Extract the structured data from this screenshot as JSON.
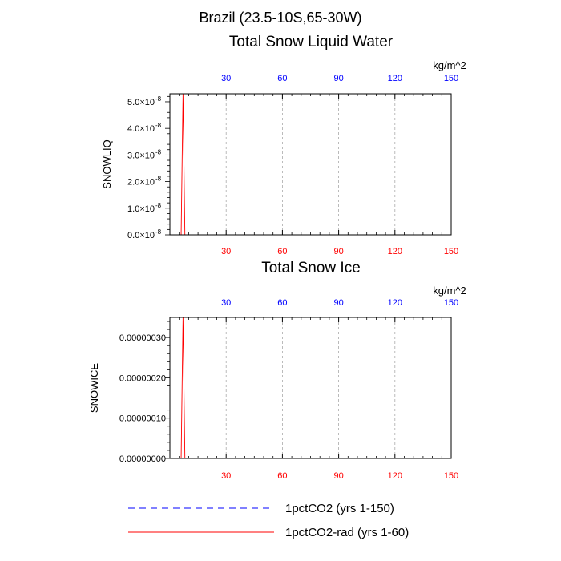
{
  "title": "Brazil (23.5-10S,65-30W)",
  "colors": {
    "top_tick_labels": "#0000ff",
    "bottom_tick_labels": "#ff0000",
    "grid": "#aaaaaa",
    "series_1pctCO2": "#0000ff",
    "series_1pctCO2_rad": "#ff0000"
  },
  "legend": {
    "placement": "bottom",
    "entries": [
      {
        "label": "1pctCO2 (yrs 1-150)",
        "style": "dashed",
        "color": "#0000ff"
      },
      {
        "label": "1pctCO2-rad (yrs 1-60)",
        "style": "solid",
        "color": "#ff0000"
      }
    ]
  },
  "chart_data": [
    {
      "type": "line",
      "title": "Total Snow Liquid Water",
      "units_label": "kg/m^2",
      "ylabel": "SNOWLIQ",
      "xlim": [
        0,
        150
      ],
      "x_ticks": [
        30,
        60,
        90,
        120,
        150
      ],
      "x_tick_labels": [
        "30",
        "60",
        "90",
        "120",
        "150"
      ],
      "ylim": [
        0,
        5.3e-08
      ],
      "y_ticks": [
        0,
        1e-08,
        2e-08,
        3e-08,
        4e-08,
        5e-08
      ],
      "y_tick_labels": [
        {
          "mantissa": "0.0×10",
          "exp": "-8"
        },
        {
          "mantissa": "1.0×10",
          "exp": "-8"
        },
        {
          "mantissa": "2.0×10",
          "exp": "-8"
        },
        {
          "mantissa": "3.0×10",
          "exp": "-8"
        },
        {
          "mantissa": "4.0×10",
          "exp": "-8"
        },
        {
          "mantissa": "5.0×10",
          "exp": "-8"
        }
      ],
      "grid": "x-dashed",
      "series": [
        {
          "name": "1pctCO2 (yrs 1-150)",
          "x": [
            1,
            150
          ],
          "y": [
            0,
            0
          ]
        },
        {
          "name": "1pctCO2-rad (yrs 1-60)",
          "x": [
            6,
            7,
            8,
            60
          ],
          "y": [
            0,
            5.3e-08,
            0,
            0
          ]
        }
      ]
    },
    {
      "type": "line",
      "title": "Total Snow Ice",
      "units_label": "kg/m^2",
      "ylabel": "SNOWICE",
      "xlim": [
        0,
        150
      ],
      "x_ticks": [
        30,
        60,
        90,
        120,
        150
      ],
      "x_tick_labels": [
        "30",
        "60",
        "90",
        "120",
        "150"
      ],
      "ylim": [
        0,
        3.5e-07
      ],
      "y_ticks": [
        0,
        1e-07,
        2e-07,
        3e-07
      ],
      "y_tick_labels": [
        {
          "mantissa": "0.00000000",
          "exp": ""
        },
        {
          "mantissa": "0.00000010",
          "exp": ""
        },
        {
          "mantissa": "0.00000020",
          "exp": ""
        },
        {
          "mantissa": "0.00000030",
          "exp": ""
        }
      ],
      "grid": "x-dashed",
      "series": [
        {
          "name": "1pctCO2 (yrs 1-150)",
          "x": [
            1,
            150
          ],
          "y": [
            0,
            0
          ]
        },
        {
          "name": "1pctCO2-rad (yrs 1-60)",
          "x": [
            6,
            7,
            8,
            60
          ],
          "y": [
            0,
            3.5e-07,
            0,
            0
          ]
        }
      ]
    }
  ]
}
